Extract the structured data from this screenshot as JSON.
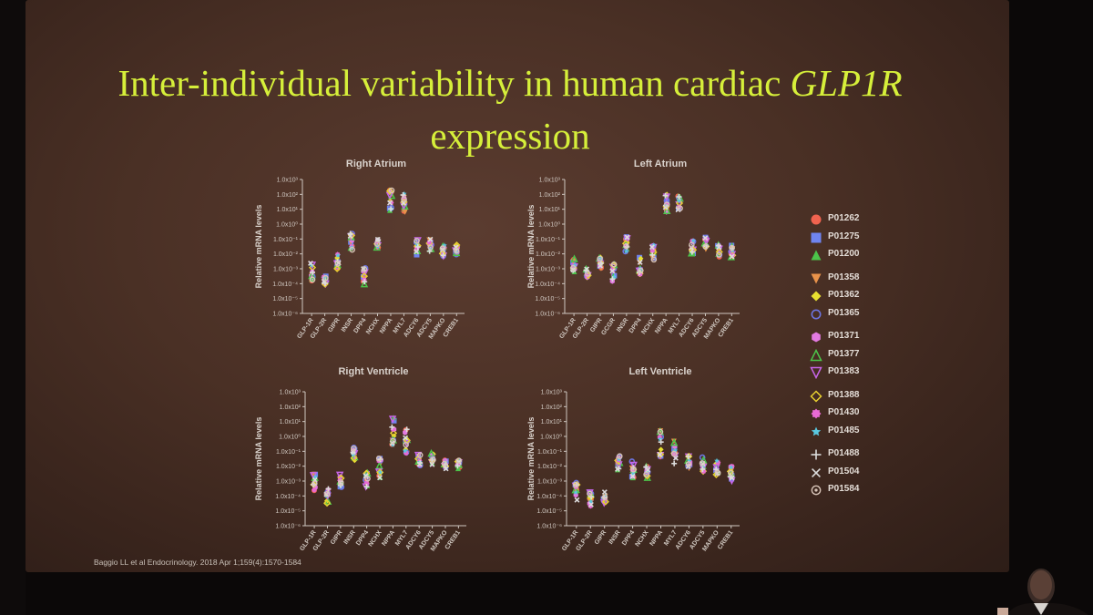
{
  "slide": {
    "title_line1": "Inter-individual variability in human cardiac ",
    "title_gene": "GLP1R",
    "title_line2": "expression",
    "citation": "Baggio LL et al Endocrinology. 2018 Apr 1;159(4):1570-1584"
  },
  "legend": [
    {
      "label": "P01262",
      "symbol": "circle",
      "color": "#f0634f"
    },
    {
      "label": "P01275",
      "symbol": "square",
      "color": "#6f84f0"
    },
    {
      "label": "P01200",
      "symbol": "triangle-up",
      "color": "#4cc44a"
    },
    {
      "label": "P01358",
      "symbol": "triangle-down",
      "color": "#e8924a"
    },
    {
      "label": "P01362",
      "symbol": "diamond",
      "color": "#e8e030"
    },
    {
      "label": "P01365",
      "symbol": "open-circle",
      "color": "#6c74e0"
    },
    {
      "label": "P01371",
      "symbol": "hexagon",
      "color": "#e27ae0"
    },
    {
      "label": "P01377",
      "symbol": "open-triangle-up",
      "color": "#4cc44a"
    },
    {
      "label": "P01383",
      "symbol": "open-triangle-down",
      "color": "#c765e8"
    },
    {
      "label": "P01388",
      "symbol": "open-diamond",
      "color": "#e8d030"
    },
    {
      "label": "P01430",
      "symbol": "flower",
      "color": "#e86ad4"
    },
    {
      "label": "P01485",
      "symbol": "star",
      "color": "#5ac8e0"
    },
    {
      "label": "P01488",
      "symbol": "plus",
      "color": "#dcdcdc"
    },
    {
      "label": "P01504",
      "symbol": "cross",
      "color": "#dcdcdc"
    },
    {
      "label": "P01584",
      "symbol": "ring",
      "color": "#d8c4b8"
    }
  ],
  "chart_data": [
    {
      "type": "scatter",
      "title": "Right Atrium",
      "ylabel": "Relative mRNA levels",
      "yscale": "log",
      "yticks": [
        "1.0x10⁻⁶",
        "1.0x10⁻⁵",
        "1.0x10⁻⁴",
        "1.0x10⁻³",
        "1.0x10⁻²",
        "1.0x10⁻¹",
        "1.0x10⁰",
        "1.0x10¹",
        "1.0x10²",
        "1.0x10³"
      ],
      "ylim_log10": [
        -6,
        3
      ],
      "categories": [
        "GLP-1R",
        "GLP-2R",
        "GIPR",
        "INSR",
        "DPP4",
        "NCHX",
        "NPPA",
        "MYL7",
        "ADCY6",
        "ADCY5",
        "MAPKO",
        "CREB1"
      ],
      "median_log10": [
        -3.2,
        -3.8,
        -2.5,
        -1.2,
        -3.5,
        -1.3,
        1.6,
        1.4,
        -1.6,
        -1.5,
        -1.8,
        -1.8
      ],
      "spread_log10": [
        0.6,
        0.3,
        0.5,
        0.6,
        0.6,
        0.3,
        0.7,
        0.7,
        0.5,
        0.5,
        0.4,
        0.4
      ]
    },
    {
      "type": "scatter",
      "title": "Left Atrium",
      "ylabel": "Relative mRNA levels",
      "yscale": "log",
      "yticks": [
        "1.0x10⁻⁶",
        "1.0x10⁻⁵",
        "1.0x10⁻⁴",
        "1.0x10⁻³",
        "1.0x10⁻²",
        "1.0x10⁻¹",
        "1.0x10⁰",
        "1.0x10¹",
        "1.0x10²",
        "1.0x10³"
      ],
      "ylim_log10": [
        -6,
        3
      ],
      "categories": [
        "GLP-1R",
        "GLP-2R",
        "GIPR",
        "GCGR",
        "INSR",
        "DPP4",
        "NCHX",
        "NPPA",
        "MYL7",
        "ADCY6",
        "ADCY5",
        "MAPKO",
        "CREB1"
      ],
      "median_log10": [
        -2.8,
        -3.3,
        -2.6,
        -3.3,
        -1.4,
        -2.8,
        -2.0,
        1.4,
        1.4,
        -1.5,
        -1.3,
        -1.8,
        -1.8
      ],
      "spread_log10": [
        0.5,
        0.3,
        0.4,
        0.6,
        0.6,
        0.6,
        0.6,
        0.6,
        0.5,
        0.5,
        0.5,
        0.4,
        0.4
      ]
    },
    {
      "type": "scatter",
      "title": "Right Ventricle",
      "ylabel": "Relative mRNA levels",
      "yscale": "log",
      "yticks": [
        "1.0x10⁻⁶",
        "1.0x10⁻⁵",
        "1.0x10⁻⁴",
        "1.0x10⁻³",
        "1.0x10⁻²",
        "1.0x10⁻¹",
        "1.0x10⁰",
        "1.0x10¹",
        "1.0x10²",
        "1.0x10³"
      ],
      "ylim_log10": [
        -6,
        3
      ],
      "categories": [
        "GLP-1R",
        "GLP-2R",
        "GIPR",
        "INSR",
        "DPP4",
        "NCHX",
        "NPPA",
        "MYL7",
        "ADCY6",
        "ADCY5",
        "MAPKO",
        "CREB1"
      ],
      "median_log10": [
        -3.1,
        -4.0,
        -2.9,
        -1.2,
        -2.9,
        -2.1,
        0.4,
        -0.3,
        -1.6,
        -1.5,
        -1.9,
        -1.9
      ],
      "spread_log10": [
        0.6,
        0.5,
        0.5,
        0.5,
        0.5,
        0.7,
        1.0,
        0.9,
        0.4,
        0.4,
        0.3,
        0.3
      ]
    },
    {
      "type": "scatter",
      "title": "Left Ventricle",
      "ylabel": "Relative mRNA levels",
      "yscale": "log",
      "yticks": [
        "1.0x10⁻⁶",
        "1.0x10⁻⁵",
        "1.0x10⁻⁴",
        "1.0x10⁻³",
        "1.0x10⁻²",
        "1.0x10⁻¹",
        "1.0x10⁰",
        "1.0x10¹",
        "1.0x10²",
        "1.0x10³"
      ],
      "ylim_log10": [
        -6,
        3
      ],
      "categories": [
        "GLP-1R",
        "GLP-2R",
        "GIPR",
        "INSR",
        "DPP4",
        "NCHX",
        "NPPA",
        "MYL7",
        "ADCY6",
        "ADCY5",
        "MAPKO",
        "CREB1"
      ],
      "median_log10": [
        -3.7,
        -4.2,
        -4.0,
        -1.8,
        -2.2,
        -2.4,
        -0.5,
        -1.2,
        -1.7,
        -1.9,
        -2.1,
        -2.4
      ],
      "spread_log10": [
        0.6,
        0.5,
        0.5,
        0.5,
        0.6,
        0.6,
        0.9,
        0.9,
        0.5,
        0.5,
        0.5,
        0.6
      ]
    }
  ]
}
